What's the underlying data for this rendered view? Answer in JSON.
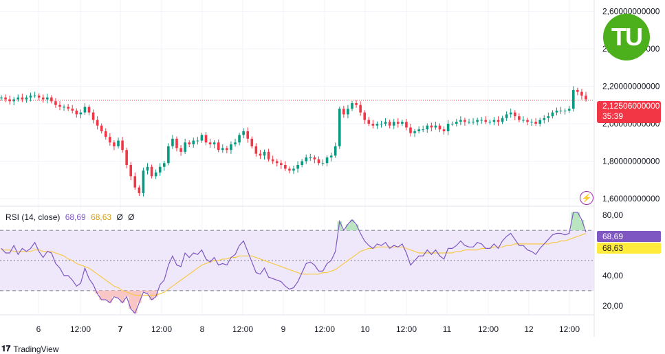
{
  "chart_data": [
    {
      "type": "candlestick",
      "title": "",
      "ylim": [
        1.56,
        2.66
      ],
      "y_ticks": [
        {
          "value": 2.6,
          "label": "2,60000000000"
        },
        {
          "value": 2.4,
          "label": "2,40000000000"
        },
        {
          "value": 2.2,
          "label": "2,20000000000"
        },
        {
          "value": 2.0,
          "label": "2,00000000000"
        },
        {
          "value": 1.8,
          "label": "1,80000000000"
        },
        {
          "value": 1.6,
          "label": "1,60000000000"
        }
      ],
      "last_price": 2.12506,
      "last_price_label": "2,12506000000",
      "countdown": "35:39",
      "x_ticks": [
        "6",
        "12:00",
        "7",
        "12:00",
        "8",
        "12:00",
        "9",
        "12:00",
        "10",
        "12:00",
        "11",
        "12:00",
        "12",
        "12:00"
      ],
      "x_tick_bold": [
        "7"
      ],
      "close_values": [
        2.14,
        2.13,
        2.12,
        2.13,
        2.14,
        2.13,
        2.14,
        2.15,
        2.15,
        2.14,
        2.13,
        2.14,
        2.12,
        2.1,
        2.09,
        2.09,
        2.08,
        2.07,
        2.05,
        2.06,
        2.09,
        2.06,
        2.02,
        1.99,
        1.96,
        1.93,
        1.9,
        1.88,
        1.91,
        1.86,
        1.78,
        1.72,
        1.66,
        1.63,
        1.75,
        1.77,
        1.72,
        1.74,
        1.77,
        1.79,
        1.88,
        1.92,
        1.87,
        1.85,
        1.9,
        1.89,
        1.91,
        1.91,
        1.94,
        1.9,
        1.89,
        1.9,
        1.86,
        1.87,
        1.86,
        1.89,
        1.9,
        1.94,
        1.96,
        1.92,
        1.88,
        1.84,
        1.83,
        1.85,
        1.81,
        1.8,
        1.79,
        1.78,
        1.76,
        1.75,
        1.76,
        1.78,
        1.8,
        1.82,
        1.82,
        1.81,
        1.79,
        1.79,
        1.82,
        1.83,
        1.88,
        2.08,
        2.05,
        2.08,
        2.11,
        2.1,
        2.06,
        2.02,
        2.0,
        1.99,
        2.0,
        2.0,
        2.01,
        1.99,
        2.01,
        2.0,
        2.01,
        1.98,
        1.95,
        1.96,
        1.97,
        1.97,
        1.99,
        1.98,
        1.99,
        1.97,
        1.96,
        2.0,
        2.0,
        2.01,
        2.02,
        2.01,
        2.01,
        2.01,
        2.02,
        2.02,
        2.01,
        2.01,
        2.02,
        2.01,
        2.03,
        2.05,
        2.06,
        2.04,
        2.02,
        2.02,
        2.01,
        2.01,
        2.0,
        2.02,
        2.03,
        2.04,
        2.06,
        2.07,
        2.07,
        2.07,
        2.08,
        2.18,
        2.17,
        2.15,
        2.13
      ]
    },
    {
      "type": "line",
      "title": "",
      "legend_name": "RSI (14, close)",
      "legend_value_rsi": "68,69",
      "legend_value_ma": "68,63",
      "legend_extra1": "Ø",
      "legend_extra2": "Ø",
      "ylim": [
        14,
        86
      ],
      "y_ticks": [
        {
          "value": 80,
          "label": "80,00"
        },
        {
          "value": 40,
          "label": "40,00"
        },
        {
          "value": 20,
          "label": "20,00"
        }
      ],
      "bands": {
        "upper": 70,
        "middle": 50,
        "lower": 30
      },
      "rsi_badge": "68,69",
      "ma_badge": "68,63",
      "colors": {
        "rsi": "#7e57c2",
        "ma": "#f7c948",
        "band_fill": "#efe8fb",
        "overbought": "#b9e6c1",
        "oversold": "#f9c6c6"
      },
      "rsi_values": [
        58,
        55,
        55,
        60,
        54,
        58,
        56,
        58,
        62,
        56,
        52,
        56,
        55,
        48,
        45,
        40,
        40,
        37,
        33,
        35,
        45,
        38,
        34,
        28,
        24,
        24,
        22,
        26,
        25,
        22,
        26,
        18,
        15,
        22,
        29,
        28,
        24,
        26,
        34,
        37,
        47,
        53,
        47,
        46,
        55,
        52,
        55,
        54,
        57,
        51,
        49,
        52,
        47,
        48,
        47,
        52,
        54,
        60,
        63,
        56,
        49,
        42,
        41,
        45,
        39,
        38,
        37,
        36,
        33,
        31,
        32,
        36,
        42,
        48,
        49,
        47,
        43,
        43,
        48,
        50,
        56,
        76,
        70,
        74,
        77,
        74,
        68,
        63,
        60,
        58,
        61,
        60,
        62,
        58,
        60,
        59,
        61,
        55,
        47,
        50,
        53,
        53,
        57,
        54,
        57,
        53,
        51,
        58,
        58,
        60,
        63,
        60,
        59,
        59,
        62,
        61,
        58,
        58,
        61,
        58,
        63,
        66,
        68,
        64,
        60,
        60,
        57,
        56,
        54,
        58,
        61,
        64,
        67,
        68,
        68,
        67,
        68,
        82,
        82,
        77,
        69
      ],
      "ma_values": [
        57,
        57,
        57,
        56,
        56,
        56,
        56,
        56,
        57,
        57,
        56,
        56,
        56,
        55,
        54,
        53,
        51,
        50,
        48,
        47,
        46,
        45,
        43,
        41,
        39,
        37,
        35,
        33,
        32,
        30,
        29,
        28,
        27,
        27,
        27,
        27,
        27,
        27,
        28,
        29,
        31,
        33,
        35,
        37,
        39,
        41,
        43,
        45,
        47,
        48,
        49,
        50,
        50,
        51,
        51,
        52,
        52,
        53,
        53,
        53,
        53,
        52,
        51,
        50,
        49,
        48,
        47,
        46,
        45,
        44,
        43,
        42,
        41,
        41,
        41,
        41,
        41,
        42,
        42,
        43,
        44,
        46,
        48,
        50,
        52,
        54,
        56,
        57,
        58,
        58,
        59,
        59,
        59,
        59,
        59,
        59,
        59,
        58,
        57,
        56,
        55,
        55,
        55,
        55,
        55,
        55,
        55,
        55,
        55,
        56,
        56,
        57,
        57,
        57,
        57,
        58,
        58,
        58,
        59,
        59,
        59,
        60,
        60,
        61,
        61,
        61,
        61,
        61,
        61,
        61,
        61,
        61,
        62,
        62,
        63,
        63,
        64,
        65,
        66,
        67,
        68
      ]
    }
  ],
  "rsi_legend": {
    "name": "RSI (14, close)",
    "v1": "68,69",
    "v2": "68,63",
    "v3": "Ø",
    "v4": "Ø"
  },
  "price_badge": {
    "price": "2,12506000000",
    "countdown": "35:39"
  },
  "rsi_badges": {
    "rsi": "68,69",
    "ma": "68,63"
  },
  "logo_text": "TU",
  "brand": "TradingView",
  "icons": {
    "bolt": "lightning-bolt-icon",
    "tv": "tradingview-logo-icon"
  }
}
